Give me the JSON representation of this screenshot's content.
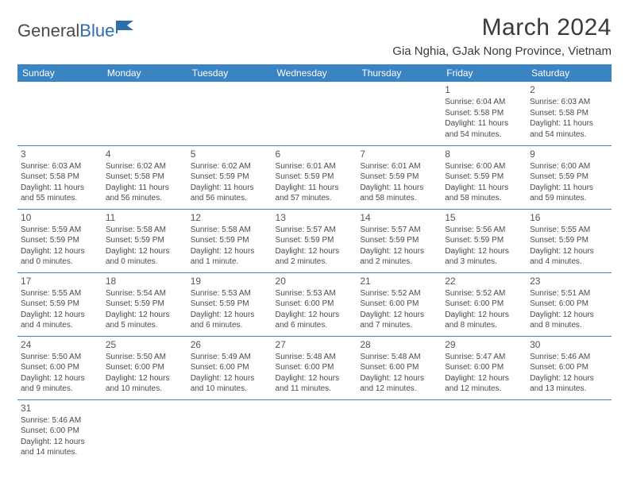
{
  "logo": {
    "general": "General",
    "blue": "Blue"
  },
  "title": "March 2024",
  "location": "Gia Nghia, GJak Nong Province, Vietnam",
  "day_headers": [
    "Sunday",
    "Monday",
    "Tuesday",
    "Wednesday",
    "Thursday",
    "Friday",
    "Saturday"
  ],
  "colors": {
    "header_bg": "#3a84c4",
    "header_text": "#ffffff",
    "text": "#4a4a4a",
    "border": "#3a84c4"
  },
  "weeks": [
    [
      null,
      null,
      null,
      null,
      null,
      {
        "n": "1",
        "sr": "Sunrise: 6:04 AM",
        "ss": "Sunset: 5:58 PM",
        "dl": "Daylight: 11 hours and 54 minutes."
      },
      {
        "n": "2",
        "sr": "Sunrise: 6:03 AM",
        "ss": "Sunset: 5:58 PM",
        "dl": "Daylight: 11 hours and 54 minutes."
      }
    ],
    [
      {
        "n": "3",
        "sr": "Sunrise: 6:03 AM",
        "ss": "Sunset: 5:58 PM",
        "dl": "Daylight: 11 hours and 55 minutes."
      },
      {
        "n": "4",
        "sr": "Sunrise: 6:02 AM",
        "ss": "Sunset: 5:58 PM",
        "dl": "Daylight: 11 hours and 56 minutes."
      },
      {
        "n": "5",
        "sr": "Sunrise: 6:02 AM",
        "ss": "Sunset: 5:59 PM",
        "dl": "Daylight: 11 hours and 56 minutes."
      },
      {
        "n": "6",
        "sr": "Sunrise: 6:01 AM",
        "ss": "Sunset: 5:59 PM",
        "dl": "Daylight: 11 hours and 57 minutes."
      },
      {
        "n": "7",
        "sr": "Sunrise: 6:01 AM",
        "ss": "Sunset: 5:59 PM",
        "dl": "Daylight: 11 hours and 58 minutes."
      },
      {
        "n": "8",
        "sr": "Sunrise: 6:00 AM",
        "ss": "Sunset: 5:59 PM",
        "dl": "Daylight: 11 hours and 58 minutes."
      },
      {
        "n": "9",
        "sr": "Sunrise: 6:00 AM",
        "ss": "Sunset: 5:59 PM",
        "dl": "Daylight: 11 hours and 59 minutes."
      }
    ],
    [
      {
        "n": "10",
        "sr": "Sunrise: 5:59 AM",
        "ss": "Sunset: 5:59 PM",
        "dl": "Daylight: 12 hours and 0 minutes."
      },
      {
        "n": "11",
        "sr": "Sunrise: 5:58 AM",
        "ss": "Sunset: 5:59 PM",
        "dl": "Daylight: 12 hours and 0 minutes."
      },
      {
        "n": "12",
        "sr": "Sunrise: 5:58 AM",
        "ss": "Sunset: 5:59 PM",
        "dl": "Daylight: 12 hours and 1 minute."
      },
      {
        "n": "13",
        "sr": "Sunrise: 5:57 AM",
        "ss": "Sunset: 5:59 PM",
        "dl": "Daylight: 12 hours and 2 minutes."
      },
      {
        "n": "14",
        "sr": "Sunrise: 5:57 AM",
        "ss": "Sunset: 5:59 PM",
        "dl": "Daylight: 12 hours and 2 minutes."
      },
      {
        "n": "15",
        "sr": "Sunrise: 5:56 AM",
        "ss": "Sunset: 5:59 PM",
        "dl": "Daylight: 12 hours and 3 minutes."
      },
      {
        "n": "16",
        "sr": "Sunrise: 5:55 AM",
        "ss": "Sunset: 5:59 PM",
        "dl": "Daylight: 12 hours and 4 minutes."
      }
    ],
    [
      {
        "n": "17",
        "sr": "Sunrise: 5:55 AM",
        "ss": "Sunset: 5:59 PM",
        "dl": "Daylight: 12 hours and 4 minutes."
      },
      {
        "n": "18",
        "sr": "Sunrise: 5:54 AM",
        "ss": "Sunset: 5:59 PM",
        "dl": "Daylight: 12 hours and 5 minutes."
      },
      {
        "n": "19",
        "sr": "Sunrise: 5:53 AM",
        "ss": "Sunset: 5:59 PM",
        "dl": "Daylight: 12 hours and 6 minutes."
      },
      {
        "n": "20",
        "sr": "Sunrise: 5:53 AM",
        "ss": "Sunset: 6:00 PM",
        "dl": "Daylight: 12 hours and 6 minutes."
      },
      {
        "n": "21",
        "sr": "Sunrise: 5:52 AM",
        "ss": "Sunset: 6:00 PM",
        "dl": "Daylight: 12 hours and 7 minutes."
      },
      {
        "n": "22",
        "sr": "Sunrise: 5:52 AM",
        "ss": "Sunset: 6:00 PM",
        "dl": "Daylight: 12 hours and 8 minutes."
      },
      {
        "n": "23",
        "sr": "Sunrise: 5:51 AM",
        "ss": "Sunset: 6:00 PM",
        "dl": "Daylight: 12 hours and 8 minutes."
      }
    ],
    [
      {
        "n": "24",
        "sr": "Sunrise: 5:50 AM",
        "ss": "Sunset: 6:00 PM",
        "dl": "Daylight: 12 hours and 9 minutes."
      },
      {
        "n": "25",
        "sr": "Sunrise: 5:50 AM",
        "ss": "Sunset: 6:00 PM",
        "dl": "Daylight: 12 hours and 10 minutes."
      },
      {
        "n": "26",
        "sr": "Sunrise: 5:49 AM",
        "ss": "Sunset: 6:00 PM",
        "dl": "Daylight: 12 hours and 10 minutes."
      },
      {
        "n": "27",
        "sr": "Sunrise: 5:48 AM",
        "ss": "Sunset: 6:00 PM",
        "dl": "Daylight: 12 hours and 11 minutes."
      },
      {
        "n": "28",
        "sr": "Sunrise: 5:48 AM",
        "ss": "Sunset: 6:00 PM",
        "dl": "Daylight: 12 hours and 12 minutes."
      },
      {
        "n": "29",
        "sr": "Sunrise: 5:47 AM",
        "ss": "Sunset: 6:00 PM",
        "dl": "Daylight: 12 hours and 12 minutes."
      },
      {
        "n": "30",
        "sr": "Sunrise: 5:46 AM",
        "ss": "Sunset: 6:00 PM",
        "dl": "Daylight: 12 hours and 13 minutes."
      }
    ],
    [
      {
        "n": "31",
        "sr": "Sunrise: 5:46 AM",
        "ss": "Sunset: 6:00 PM",
        "dl": "Daylight: 12 hours and 14 minutes."
      },
      null,
      null,
      null,
      null,
      null,
      null
    ]
  ]
}
